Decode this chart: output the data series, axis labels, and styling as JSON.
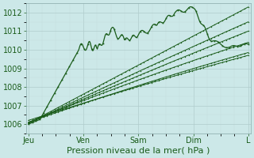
{
  "xlabel": "Pression niveau de la mer( hPa )",
  "bg_color": "#cce8e8",
  "grid_major_color": "#b0cccc",
  "grid_minor_color": "#c4dcdc",
  "line_color": "#1a5c1a",
  "ylim": [
    1005.5,
    1012.5
  ],
  "yticks": [
    1006,
    1007,
    1008,
    1009,
    1010,
    1011,
    1012
  ],
  "day_labels": [
    "Jeu",
    "Ven",
    "Sam",
    "Dim",
    "L"
  ],
  "day_positions": [
    0,
    24,
    48,
    72,
    96
  ],
  "total_hours": 96,
  "xlabel_fontsize": 8,
  "tick_fontsize": 7
}
